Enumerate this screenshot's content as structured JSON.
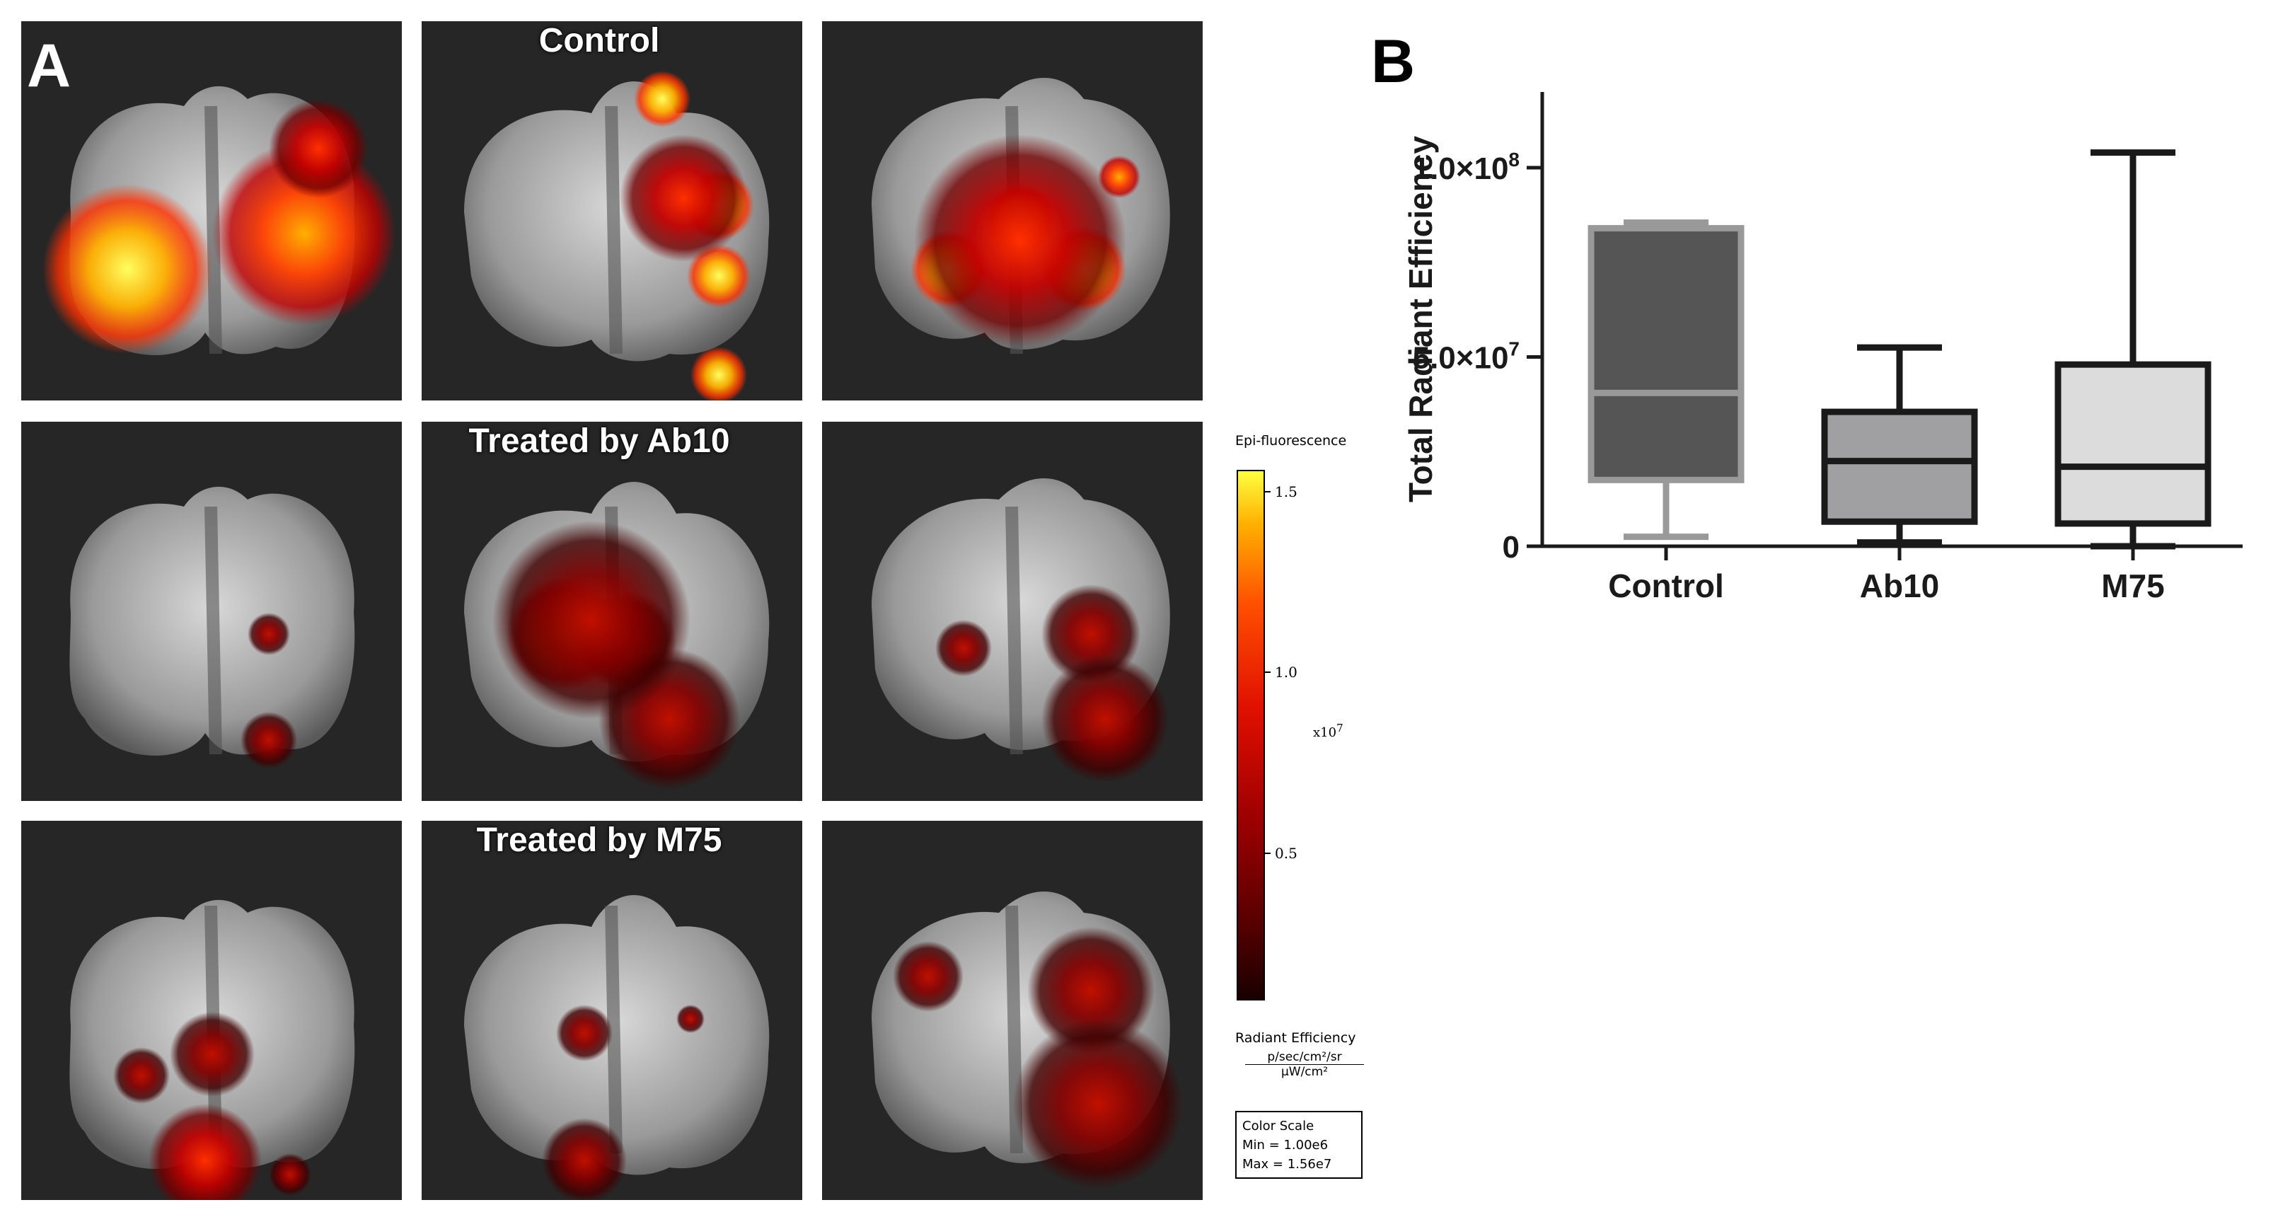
{
  "panel_a": {
    "letter": "A",
    "row_titles": [
      "Control",
      "Treated by Ab10",
      "Treated by M75"
    ],
    "colorbar": {
      "title": "Epi-fluorescence",
      "ticks": [
        "1.5",
        "1.0",
        "0.5"
      ],
      "tick_values": [
        1.5,
        1.0,
        0.5
      ],
      "range": [
        0.1,
        1.56
      ],
      "exponent_base": "x10",
      "exponent_power": "7",
      "units_label": "Radiant Efficiency",
      "units_numerator": "p/sec/cm²/sr",
      "units_denominator": "μW/cm²",
      "scale_box": {
        "heading": "Color Scale",
        "min": "Min = 1.00e6",
        "max": "Max = 1.56e7"
      }
    }
  },
  "panel_b": {
    "letter": "B"
  },
  "chart_data": {
    "type": "box",
    "ylabel": "Total Radiant Efficiency",
    "xlabel": "",
    "categories": [
      "Control",
      "Ab10",
      "M75"
    ],
    "ylim": [
      0,
      120000000
    ],
    "yticks": [
      {
        "value": 0,
        "label": "0",
        "exp": ""
      },
      {
        "value": 50000000,
        "label": "5.0×10",
        "exp": "7"
      },
      {
        "value": 100000000,
        "label": "1.0×10",
        "exp": "8"
      }
    ],
    "series": [
      {
        "category": "Control",
        "min": 2500000,
        "q1": 17500000,
        "median": 40500000,
        "q3": 84000000,
        "max": 85500000,
        "fill": "#555555",
        "stroke": "#999999"
      },
      {
        "category": "Ab10",
        "min": 1000000,
        "q1": 6500000,
        "median": 22500000,
        "q3": 35500000,
        "max": 52500000,
        "fill": "#a0a0a2",
        "stroke": "#1a1a1a"
      },
      {
        "category": "M75",
        "min": 0,
        "q1": 6000000,
        "median": 21000000,
        "q3": 48000000,
        "max": 104000000,
        "fill": "#dcdcdc",
        "stroke": "#1a1a1a"
      }
    ],
    "grid": false,
    "legend": "none"
  }
}
